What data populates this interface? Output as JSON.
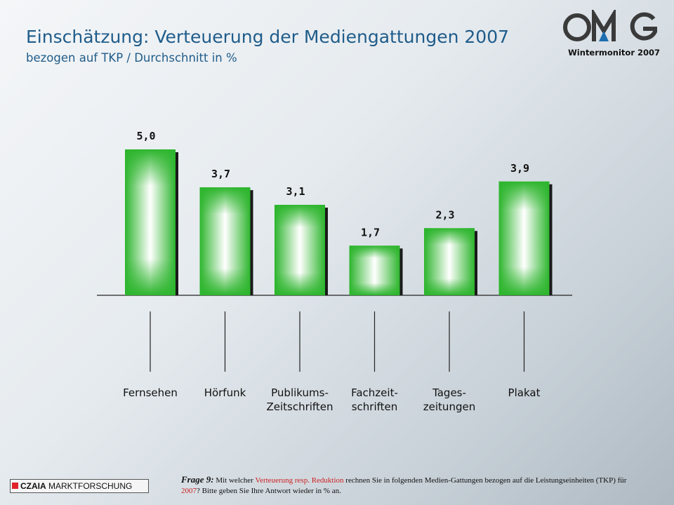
{
  "header": {
    "title": "Einschätzung: Verteuerung der Mediengattungen 2007",
    "subtitle": "bezogen auf TKP / Durchschnitt in %"
  },
  "logo": {
    "text": "OMG",
    "caption": "Wintermonitor  2007",
    "colors": {
      "letters": "#3a3a3a",
      "accent": "#1e6fb0"
    }
  },
  "chart_data": {
    "type": "bar",
    "title": "Einschätzung: Verteuerung der Mediengattungen 2007",
    "subtitle": "bezogen auf TKP / Durchschnitt in %",
    "categories": [
      [
        "Fernsehen"
      ],
      [
        "Hörfunk"
      ],
      [
        "Publikums-",
        "Zeitschriften"
      ],
      [
        "Fachzeit-",
        "schriften"
      ],
      [
        "Tages-",
        "zeitungen"
      ],
      [
        "Plakat"
      ]
    ],
    "values": [
      5.0,
      3.7,
      3.1,
      1.7,
      2.3,
      3.9
    ],
    "value_labels": [
      "5,0",
      "3,7",
      "3,1",
      "1,7",
      "2,3",
      "3,9"
    ],
    "ylim": [
      0,
      5.0
    ],
    "grid": false,
    "legend": "none",
    "colors": {
      "bar": "#2db52d",
      "bar_highlight": "#ffffff",
      "bar_shadow": "#1a1a1a"
    }
  },
  "footer": {
    "brand_bold": "CZAIA",
    "brand_rest": " MARKTFORSCHUNG",
    "question": {
      "label": "Frage 9:",
      "part1": " Mit welcher ",
      "highlight1": "Verteuerung resp. Reduktion",
      "part2": " rechnen Sie in folgenden Medien-Gattungen bezogen auf die Leistungseinheiten (TKP) für ",
      "highlight2": "2007",
      "part3": "? Bitte geben Sie Ihre Antwort wieder in % an."
    }
  }
}
